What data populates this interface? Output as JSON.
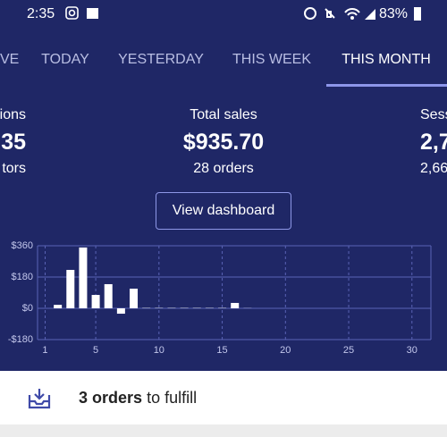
{
  "status_bar": {
    "time": "2:35",
    "battery": "83%"
  },
  "tabs": [
    "VE",
    "TODAY",
    "YESTERDAY",
    "THIS WEEK",
    "THIS MONTH"
  ],
  "stats": [
    {
      "label": "ions",
      "value": "35",
      "sub": "tors"
    },
    {
      "label": "Total sales",
      "value": "$935.70",
      "sub": "28 orders"
    },
    {
      "label": "Sess",
      "value": "2,7",
      "sub": "2,66"
    }
  ],
  "button": "View dashboard",
  "chart_data": {
    "type": "bar",
    "x": [
      1,
      2,
      3,
      4,
      5,
      6,
      7,
      8,
      9,
      10,
      11,
      12,
      13,
      14,
      15,
      16,
      17,
      18,
      19,
      20,
      21,
      22,
      23,
      24,
      25,
      26,
      27,
      28,
      29,
      30
    ],
    "values": [
      0,
      20,
      221,
      350,
      77,
      139,
      -31,
      113,
      2,
      2,
      2,
      2,
      2,
      2,
      2,
      31,
      1,
      null,
      null,
      null,
      null,
      null,
      null,
      null,
      null,
      null,
      null,
      null,
      null,
      null
    ],
    "color": "#ffffff",
    "xlim": [
      0.4,
      31.5
    ],
    "xticks": [
      1,
      5,
      10,
      15,
      20,
      25,
      30
    ],
    "ylim": [
      -180,
      360
    ],
    "yticks": [
      {
        "value": -180,
        "label": "-$180"
      },
      {
        "value": 0,
        "label": "$0"
      },
      {
        "value": 180,
        "label": "$180"
      },
      {
        "value": 360,
        "label": "$360"
      }
    ],
    "grid": true
  },
  "fulfill": {
    "count": "3 orders",
    "text": "to fulfill"
  }
}
